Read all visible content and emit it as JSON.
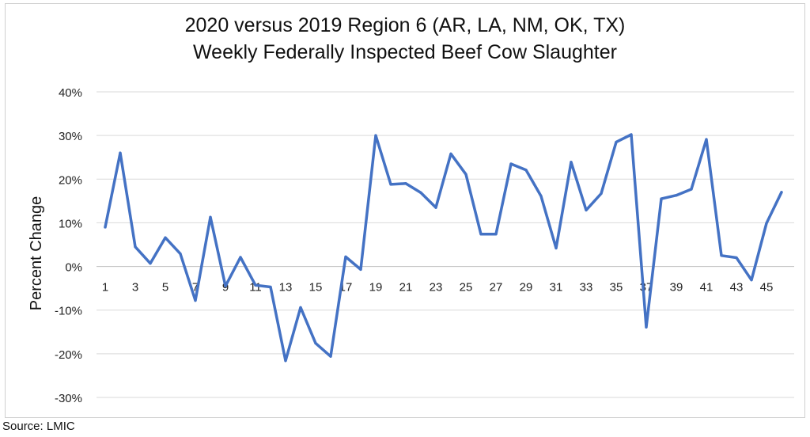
{
  "chart_data": {
    "type": "line",
    "title_line1": "2020 versus 2019 Region 6 (AR, LA, NM, OK, TX)",
    "title_line2": "Weekly Federally Inspected Beef Cow Slaughter",
    "xlabel": "",
    "ylabel": "Percent Change",
    "ylim": [
      -30,
      40
    ],
    "yticks": [
      40,
      30,
      20,
      10,
      0,
      -10,
      -20,
      -30
    ],
    "ytick_labels": [
      "40%",
      "30%",
      "20%",
      "10%",
      "0%",
      "-10%",
      "-20%",
      "-30%"
    ],
    "xlim": [
      1,
      46
    ],
    "xtick_labels": [
      "1",
      "3",
      "5",
      "7",
      "9",
      "11",
      "13",
      "15",
      "17",
      "19",
      "21",
      "23",
      "25",
      "27",
      "29",
      "31",
      "33",
      "35",
      "37",
      "39",
      "41",
      "43",
      "45"
    ],
    "xtick_values": [
      1,
      3,
      5,
      7,
      9,
      11,
      13,
      15,
      17,
      19,
      21,
      23,
      25,
      27,
      29,
      31,
      33,
      35,
      37,
      39,
      41,
      43,
      45
    ],
    "grid": true,
    "series_color": "#4472c4",
    "series": [
      {
        "name": "Percent Change",
        "x": [
          1,
          2,
          3,
          4,
          5,
          6,
          7,
          8,
          9,
          10,
          11,
          12,
          13,
          14,
          15,
          16,
          17,
          18,
          19,
          20,
          21,
          22,
          23,
          24,
          25,
          26,
          27,
          28,
          29,
          30,
          31,
          32,
          33,
          34,
          35,
          36,
          37,
          38,
          39,
          40,
          41,
          42,
          43,
          44,
          45,
          46
        ],
        "values": [
          9,
          26,
          4.5,
          0.7,
          6.6,
          2.9,
          -7.8,
          11.3,
          -4.5,
          2.1,
          -4.3,
          -4.7,
          -21.6,
          -9.4,
          -17.6,
          -20.6,
          2.2,
          -0.7,
          30,
          18.8,
          19,
          16.9,
          13.5,
          25.8,
          21.1,
          7.4,
          7.4,
          23.5,
          22.1,
          16.1,
          4.2,
          23.9,
          12.9,
          16.7,
          28.5,
          30.2,
          -13.9,
          15.5,
          16.3,
          17.7,
          29.1,
          2.5,
          2,
          -3.1,
          9.9,
          17
        ]
      }
    ]
  },
  "source": "Source: LMIC"
}
